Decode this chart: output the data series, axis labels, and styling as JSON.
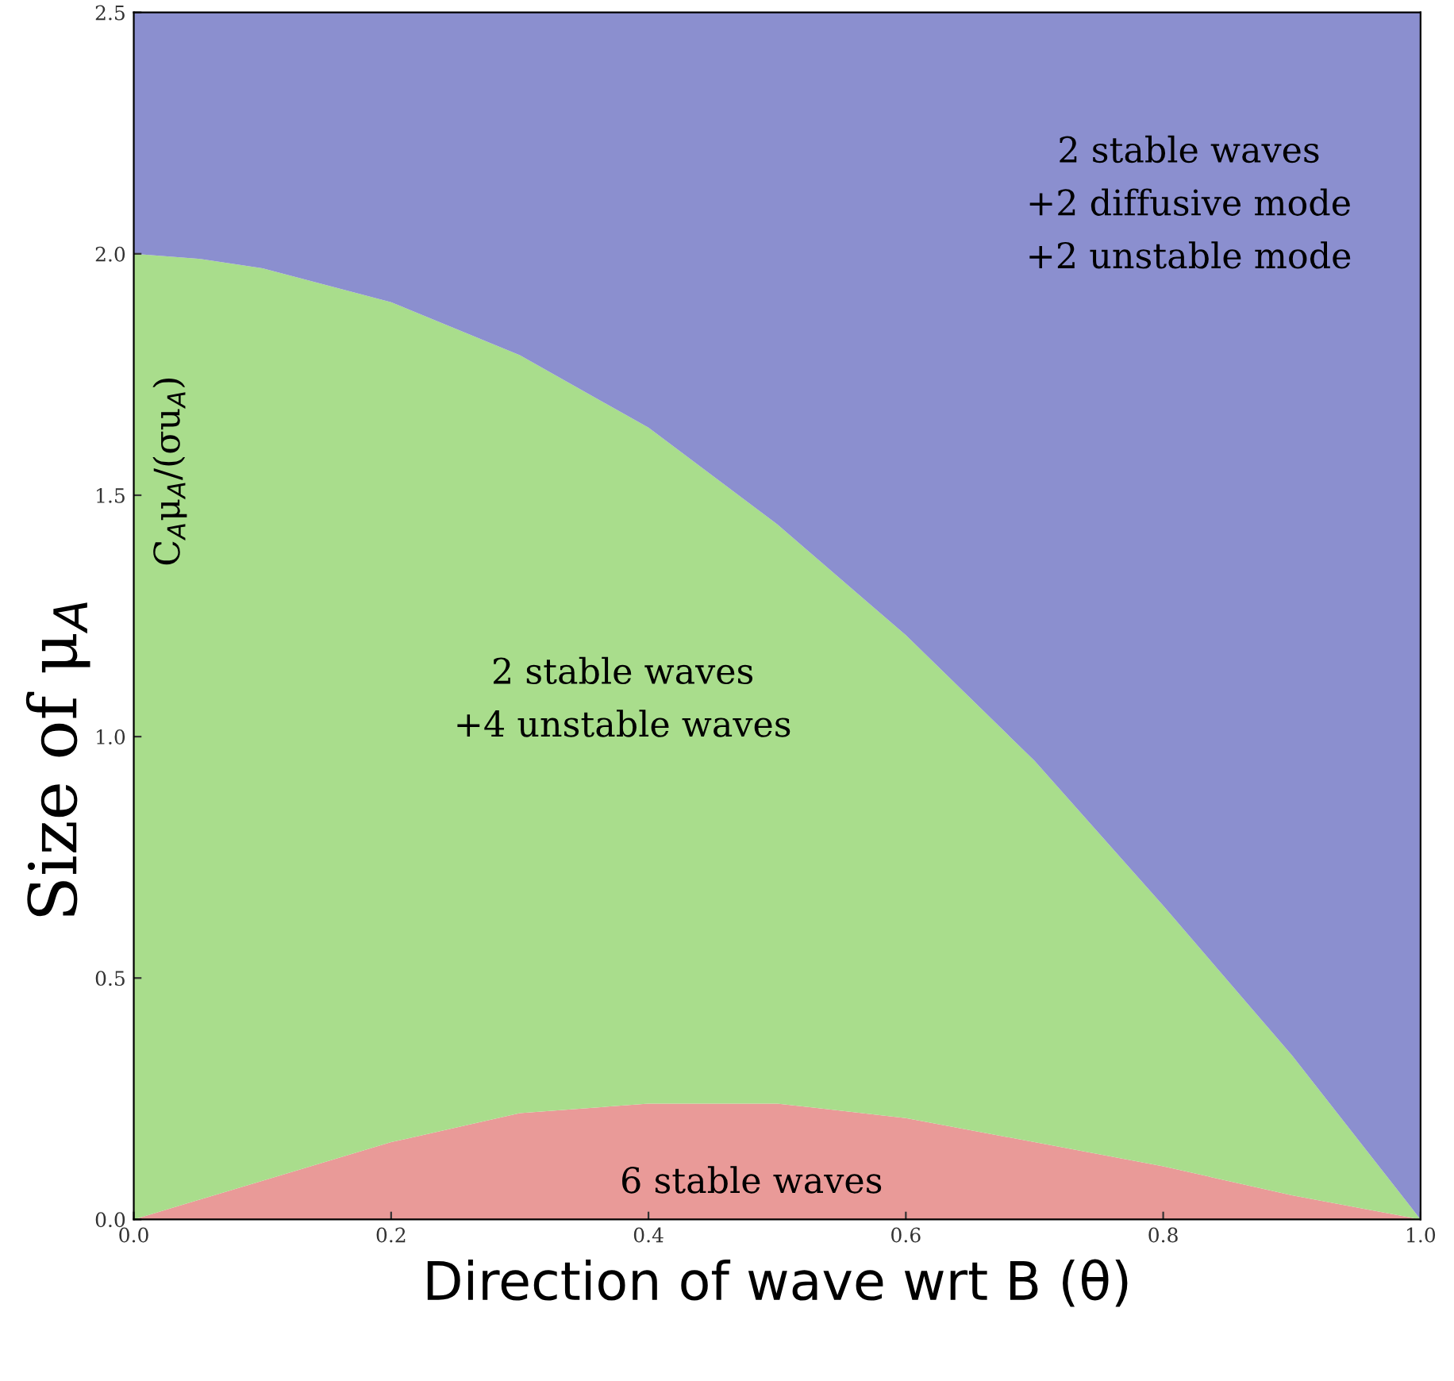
{
  "chart_data": {
    "type": "area",
    "stacked": true,
    "x": [
      0.0,
      0.05,
      0.1,
      0.2,
      0.3,
      0.4,
      0.5,
      0.6,
      0.7,
      0.8,
      0.9,
      1.0
    ],
    "series": [
      {
        "color": "#e99a98",
        "values": [
          0.0,
          0.04,
          0.08,
          0.16,
          0.22,
          0.24,
          0.24,
          0.21,
          0.16,
          0.11,
          0.05,
          0.0
        ]
      },
      {
        "color": "#a9dd8c",
        "values": [
          2.0,
          1.95,
          1.89,
          1.74,
          1.57,
          1.4,
          1.2,
          1.0,
          0.79,
          0.54,
          0.29,
          0.0
        ]
      },
      {
        "color": "#8b8fcf",
        "values": [
          0.5,
          0.51,
          0.53,
          0.6,
          0.71,
          0.86,
          1.06,
          1.29,
          1.55,
          1.85,
          2.16,
          2.5
        ]
      }
    ],
    "xlim": [
      0.0,
      1.0
    ],
    "ylim": [
      0.0,
      2.5
    ],
    "xticks": [
      {
        "value": 0.0,
        "label": "0.0"
      },
      0.2,
      0.4,
      0.6,
      0.8,
      {
        "value": 1.0,
        "label": "1.0"
      }
    ],
    "yticks": [
      {
        "value": 0.0,
        "label": "0.0"
      },
      0.5,
      {
        "value": 1.0,
        "label": "1.0"
      },
      1.5,
      {
        "value": 2.0,
        "label": "2.0"
      },
      2.5
    ],
    "xlabel": "Direction of wave wrt B (θ)",
    "ylabel": "Size of μ$_{A}$",
    "annotations": [
      "C$_{A}$μ$_{A}$/(σu$_{A}$)",
      "2 stable waves\n+2 diffusive mode\n+2 unstable mode",
      "2 stable waves\n+4 unstable waves",
      "6 stable waves"
    ],
    "grid": false
  }
}
